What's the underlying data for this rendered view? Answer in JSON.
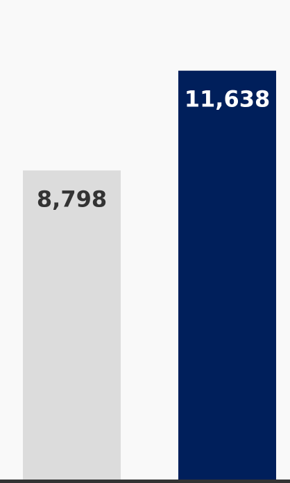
{
  "chart_data": {
    "type": "bar",
    "categories": [
      "",
      ""
    ],
    "values": [
      8798,
      11638
    ],
    "data_labels": [
      "8,798",
      "11,638"
    ],
    "bar_colors": [
      "#dcdcdc",
      "#001f5b"
    ],
    "label_colors": [
      "#333333",
      "#ffffff"
    ],
    "background_color": "#f9f9f9",
    "baseline_color": "#333333",
    "title": "",
    "xlabel": "",
    "ylabel": "",
    "ylim": [
      0,
      13650
    ],
    "grid": false,
    "legend": "none"
  }
}
